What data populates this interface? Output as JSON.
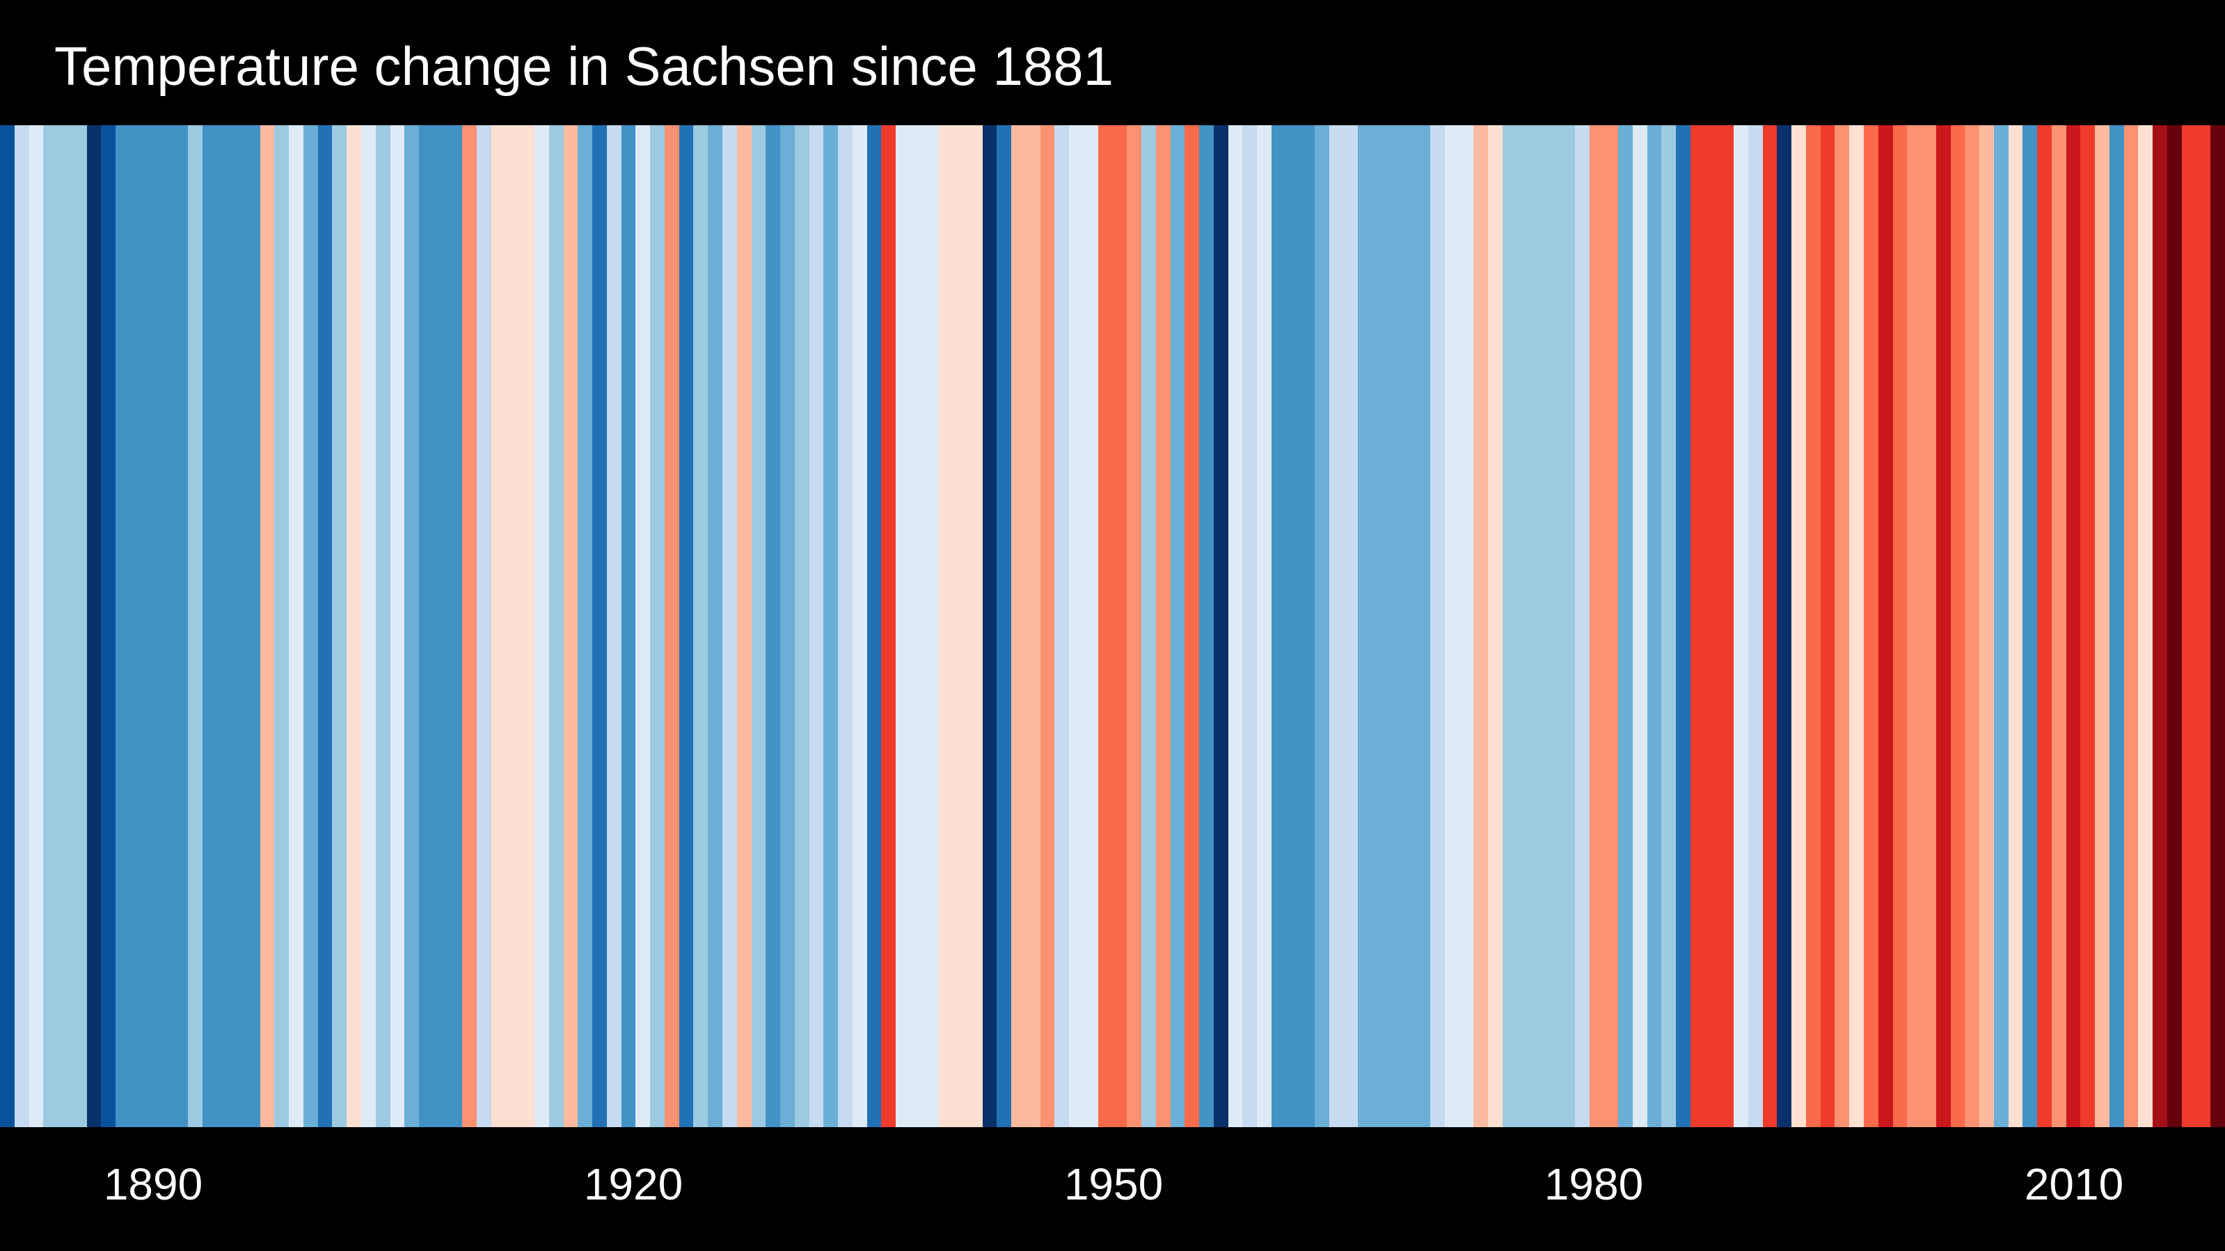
{
  "chart_data": {
    "type": "heatmap",
    "title": "Temperature change in Sachsen since 1881",
    "x_ticks": [
      "1890",
      "1920",
      "1950",
      "1980",
      "2010"
    ],
    "colors": {
      "-6": "#08306b",
      "-5": "#08519c",
      "-4": "#2171b5",
      "-3": "#4292c6",
      "-2": "#6baed6",
      "-1": "#9ecae1",
      "0": "#c6dbef",
      "1": "#deebf7",
      "2": "#fee0d2",
      "3": "#fcbba1",
      "4": "#fc9272",
      "5": "#fb6a4a",
      "6": "#ef3b2c",
      "7": "#cb181d",
      "8": "#a50f15",
      "9": "#67000d"
    },
    "series": [
      {
        "name": "",
        "x": [
          1881,
          1882,
          1883,
          1884,
          1885,
          1886,
          1887,
          1888,
          1889,
          1890,
          1891,
          1892,
          1893,
          1894,
          1895,
          1896,
          1897,
          1898,
          1899,
          1900,
          1901,
          1902,
          1903,
          1904,
          1905,
          1906,
          1907,
          1908,
          1909,
          1910,
          1911,
          1912,
          1913,
          1914,
          1915,
          1916,
          1917,
          1918,
          1919,
          1920,
          1921,
          1922,
          1923,
          1924,
          1925,
          1926,
          1927,
          1928,
          1929,
          1930,
          1931,
          1932,
          1933,
          1934,
          1935,
          1936,
          1937,
          1938,
          1939,
          1940,
          1941,
          1942,
          1943,
          1944,
          1945,
          1946,
          1947,
          1948,
          1949,
          1950,
          1951,
          1952,
          1953,
          1954,
          1955,
          1956,
          1957,
          1958,
          1959,
          1960,
          1961,
          1962,
          1963,
          1964,
          1965,
          1966,
          1967,
          1968,
          1969,
          1970,
          1971,
          1972,
          1973,
          1974,
          1975,
          1976,
          1977,
          1978,
          1979,
          1980,
          1981,
          1982,
          1983,
          1984,
          1985,
          1986,
          1987,
          1988,
          1989,
          1990,
          1991,
          1992,
          1993,
          1994,
          1995,
          1996,
          1997,
          1998,
          1999,
          2000,
          2001,
          2002,
          2003,
          2004,
          2005,
          2006,
          2007,
          2008,
          2009,
          2010,
          2011,
          2012,
          2013,
          2014,
          2015,
          2016,
          2017,
          2018
        ],
        "values": [
          -5,
          0,
          1,
          -1,
          -1,
          -1,
          -6,
          -5,
          -3,
          -3,
          -3,
          -3,
          -3,
          -1,
          -3,
          -3,
          -3,
          -3,
          3,
          -1,
          1,
          -2,
          -4,
          -1,
          2,
          1,
          -1,
          1,
          -2,
          -3,
          -3,
          -3,
          4,
          0,
          2,
          2,
          2,
          1,
          -1,
          3,
          -2,
          -4,
          0,
          -3,
          1,
          -1,
          4,
          -4,
          -1,
          -2,
          0,
          3,
          -1,
          -3,
          -2,
          -1,
          0,
          -2,
          0,
          1,
          -4,
          6,
          1,
          1,
          1,
          2,
          2,
          2,
          -6,
          -4,
          3,
          3,
          4,
          0,
          1,
          1,
          5,
          5,
          4,
          -1,
          4,
          -2,
          5,
          -3,
          -6,
          1,
          0,
          1,
          -3,
          -3,
          -3,
          -2,
          0,
          0,
          -2,
          -2,
          -2,
          -2,
          -2,
          0,
          1,
          1,
          3,
          2,
          -1,
          -1,
          -1,
          -1,
          -1,
          0,
          4,
          4,
          -2,
          1,
          -2,
          -1,
          -4,
          6,
          6,
          6,
          1,
          0,
          6,
          -6,
          2,
          5,
          6,
          4,
          2,
          5,
          7,
          5,
          4,
          4,
          7,
          5,
          4,
          3
        ]
      }
    ],
    "extra_stripes": [
      -2,
      2,
      -3,
      6,
      4,
      7,
      6,
      3,
      -3,
      4,
      2,
      8,
      9,
      6,
      6,
      9
    ],
    "xlim": [
      1881,
      2018
    ],
    "grid": false,
    "legend": "none"
  }
}
